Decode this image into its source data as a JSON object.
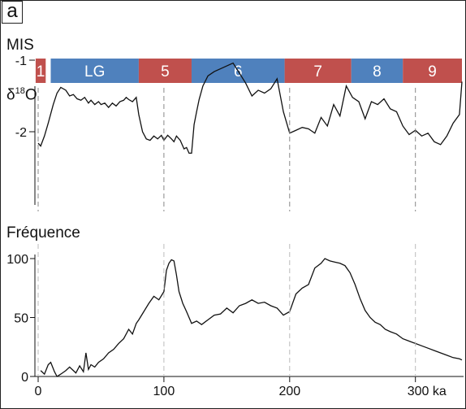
{
  "panel_label": "a",
  "mis_label": "MIS",
  "colors": {
    "warm": "#c0504d",
    "cold": "#4f81bd",
    "line": "#111111"
  },
  "chart_data": [
    {
      "type": "bar",
      "title": "MIS",
      "segments": [
        {
          "label": "1",
          "start": -2,
          "end": 6,
          "class": "warm"
        },
        {
          "label": "LG",
          "start": 10,
          "end": 80,
          "class": "cold"
        },
        {
          "label": "5",
          "start": 80,
          "end": 122,
          "class": "warm"
        },
        {
          "label": "6",
          "start": 122,
          "end": 196,
          "class": "cold"
        },
        {
          "label": "7",
          "start": 196,
          "end": 249,
          "class": "warm"
        },
        {
          "label": "8",
          "start": 249,
          "end": 290,
          "class": "cold"
        },
        {
          "label": "9",
          "start": 290,
          "end": 337,
          "class": "warm"
        }
      ]
    },
    {
      "type": "line",
      "ylabel_base": "δ",
      "ylabel_sup": "18",
      "ylabel_end": "O",
      "ylim": [
        -0.92,
        -2.38
      ],
      "yticks": [
        -2,
        -1
      ],
      "ytick_labels": [
        "-2",
        "-1"
      ],
      "x": [
        0,
        2,
        5,
        8,
        12,
        15,
        18,
        22,
        25,
        28,
        31,
        34,
        37,
        40,
        42,
        45,
        48,
        50,
        53,
        56,
        59,
        62,
        65,
        68,
        70,
        72,
        75,
        78,
        80,
        83,
        86,
        89,
        92,
        95,
        98,
        100,
        103,
        106,
        108,
        110,
        113,
        116,
        118,
        120,
        122,
        124,
        126,
        128,
        131,
        135,
        140,
        145,
        150,
        155,
        160,
        165,
        170,
        175,
        180,
        185,
        190,
        195,
        200,
        205,
        210,
        215,
        220,
        225,
        230,
        235,
        240,
        245,
        250,
        255,
        260,
        265,
        270,
        275,
        280,
        285,
        290,
        295,
        300,
        305,
        310,
        315,
        320,
        325,
        330,
        335,
        337
      ],
      "y": [
        -2.16,
        -2.2,
        -2.06,
        -1.88,
        -1.62,
        -1.46,
        -1.38,
        -1.42,
        -1.5,
        -1.48,
        -1.54,
        -1.56,
        -1.52,
        -1.6,
        -1.56,
        -1.62,
        -1.58,
        -1.62,
        -1.6,
        -1.66,
        -1.6,
        -1.64,
        -1.58,
        -1.56,
        -1.52,
        -1.55,
        -1.58,
        -1.52,
        -1.76,
        -2.0,
        -2.1,
        -2.12,
        -2.06,
        -2.1,
        -2.05,
        -2.12,
        -2.05,
        -2.1,
        -2.14,
        -2.06,
        -2.12,
        -2.24,
        -2.22,
        -2.3,
        -2.3,
        -1.9,
        -1.72,
        -1.55,
        -1.36,
        -1.22,
        -1.16,
        -1.12,
        -1.08,
        -1.04,
        -1.18,
        -1.32,
        -1.5,
        -1.42,
        -1.46,
        -1.4,
        -1.26,
        -1.72,
        -2.02,
        -1.98,
        -1.94,
        -1.96,
        -2.02,
        -1.8,
        -1.92,
        -1.62,
        -1.78,
        -1.36,
        -1.52,
        -1.58,
        -1.82,
        -1.58,
        -1.62,
        -1.54,
        -1.68,
        -1.72,
        -1.92,
        -2.04,
        -1.98,
        -2.06,
        -2.02,
        -2.14,
        -2.18,
        -2.06,
        -1.88,
        -1.76,
        -1.3
      ]
    },
    {
      "type": "line",
      "ylabel": "Fréquence",
      "xlabel": "ka",
      "xlim": [
        0,
        337
      ],
      "ylim": [
        0,
        100
      ],
      "xticks": [
        0,
        100,
        200,
        300
      ],
      "xtick_labels": [
        "0",
        "100",
        "200",
        "300 ka"
      ],
      "yticks": [
        0,
        50,
        100
      ],
      "ytick_labels": [
        "0",
        "50",
        "100"
      ],
      "x": [
        2,
        5,
        8,
        10,
        13,
        15,
        18,
        22,
        25,
        28,
        30,
        33,
        36,
        38,
        40,
        42,
        45,
        48,
        52,
        56,
        60,
        64,
        68,
        72,
        75,
        78,
        80,
        84,
        88,
        92,
        96,
        100,
        102,
        104,
        106,
        108,
        110,
        112,
        115,
        118,
        122,
        126,
        130,
        135,
        140,
        145,
        150,
        155,
        160,
        165,
        170,
        175,
        180,
        185,
        190,
        195,
        200,
        205,
        210,
        215,
        220,
        225,
        228,
        232,
        236,
        240,
        244,
        248,
        252,
        256,
        260,
        264,
        268,
        272,
        276,
        280,
        285,
        290,
        295,
        300,
        305,
        310,
        315,
        320,
        325,
        330,
        335,
        337
      ],
      "y": [
        5,
        2,
        10,
        12,
        4,
        0,
        2,
        5,
        8,
        5,
        3,
        9,
        4,
        20,
        6,
        10,
        8,
        12,
        15,
        20,
        23,
        28,
        32,
        40,
        36,
        45,
        48,
        55,
        62,
        68,
        65,
        72,
        90,
        96,
        99,
        98,
        86,
        72,
        62,
        55,
        45,
        47,
        44,
        48,
        52,
        53,
        58,
        54,
        60,
        62,
        65,
        62,
        63,
        60,
        58,
        52,
        55,
        70,
        75,
        78,
        92,
        96,
        100,
        98,
        97,
        96,
        94,
        88,
        78,
        66,
        56,
        50,
        46,
        44,
        40,
        38,
        36,
        32,
        30,
        28,
        26,
        24,
        22,
        20,
        18,
        16,
        15,
        14
      ]
    }
  ]
}
